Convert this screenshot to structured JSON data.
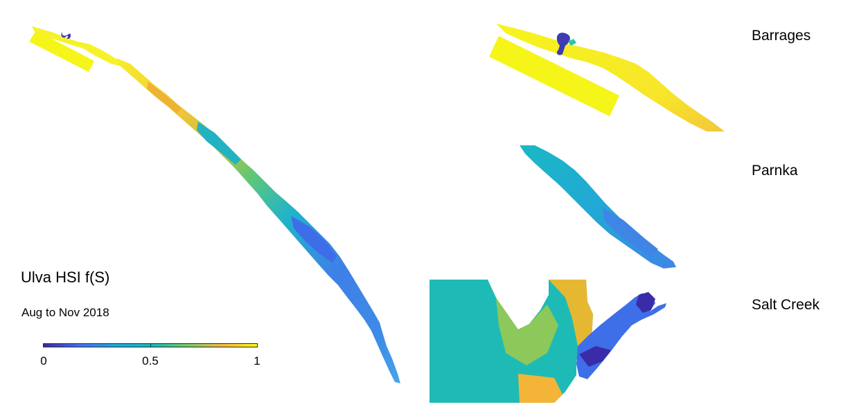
{
  "figure": {
    "title": "Ulva HSI f(S)",
    "subtitle": "Aug to Nov 2018"
  },
  "regions": {
    "barrages": "Barrages",
    "parnka": "Parnka",
    "salt_creek": "Salt Creek"
  },
  "colorbar": {
    "min_label": "0",
    "mid_label": "0.5",
    "max_label": "1",
    "colormap": "parula",
    "colors": [
      "#3e26a8",
      "#4471ee",
      "#1caadf",
      "#29c39a",
      "#c1bc35",
      "#f9b934",
      "#f9fb0e"
    ]
  }
}
